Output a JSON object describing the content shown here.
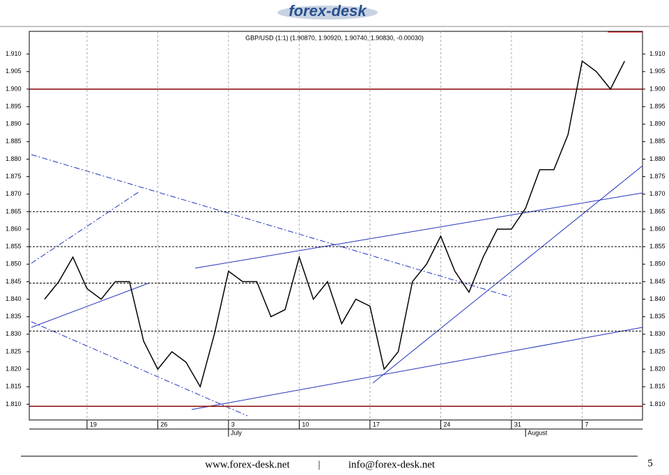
{
  "logo": "forex-desk",
  "chart_data": {
    "type": "line",
    "title": "GBP/USD (1:1) (1.90870, 1.90920, 1.90740, 1.90830, -0.00030)",
    "categories": [
      null,
      null,
      null,
      "19",
      null,
      null,
      null,
      null,
      "26",
      null,
      null,
      null,
      null,
      "3",
      null,
      null,
      null,
      null,
      "10",
      null,
      null,
      null,
      null,
      "17",
      null,
      null,
      null,
      null,
      "24",
      null,
      null,
      null,
      null,
      "31",
      null,
      null,
      null,
      null,
      "7",
      null,
      null,
      null
    ],
    "month_labels": [
      "July",
      "August"
    ],
    "series": [
      {
        "name": "GBP/USD",
        "color": "#000000",
        "values": [
          1.84,
          1.845,
          1.852,
          1.843,
          1.84,
          1.845,
          1.845,
          1.828,
          1.82,
          1.825,
          1.822,
          1.815,
          1.83,
          1.848,
          1.845,
          1.845,
          1.835,
          1.837,
          1.852,
          1.84,
          1.845,
          1.833,
          1.84,
          1.838,
          1.82,
          1.825,
          1.845,
          1.85,
          1.858,
          1.848,
          1.842,
          1.852,
          1.86,
          1.86,
          1.866,
          1.877,
          1.877,
          1.887,
          1.908,
          1.905,
          1.9,
          1.908
        ]
      }
    ],
    "levels": [
      {
        "value": 1.9,
        "color": "#8b0000",
        "style": "solid"
      },
      {
        "value": 1.8094,
        "color": "#8b0000",
        "style": "solid"
      },
      {
        "value": 1.865,
        "color": "#000000",
        "style": "dashed"
      },
      {
        "value": 1.855,
        "color": "#000000",
        "style": "dashed"
      },
      {
        "value": 1.8446,
        "color": "#000000",
        "style": "dashed"
      },
      {
        "value": 1.8309,
        "color": "#000000",
        "style": "dashed"
      }
    ],
    "ylim": [
      1.8055,
      1.9165
    ],
    "yticks": [
      {
        "value": 1.81,
        "label": "1.810"
      },
      {
        "value": 1.815,
        "label": "1.815"
      },
      {
        "value": 1.82,
        "label": "1.820"
      },
      {
        "value": 1.825,
        "label": "1.825"
      },
      {
        "value": 1.83,
        "label": "1.830"
      },
      {
        "value": 1.835,
        "label": "1.835"
      },
      {
        "value": 1.84,
        "label": "1.840"
      },
      {
        "value": 1.845,
        "label": "1.845"
      },
      {
        "value": 1.85,
        "label": "1.850"
      },
      {
        "value": 1.855,
        "label": "1.855"
      },
      {
        "value": 1.86,
        "label": "1.860"
      },
      {
        "value": 1.865,
        "label": "1.865"
      },
      {
        "value": 1.87,
        "label": "1.870"
      },
      {
        "value": 1.875,
        "label": "1.875"
      },
      {
        "value": 1.88,
        "label": "1.880"
      },
      {
        "value": 1.885,
        "label": "1.885"
      },
      {
        "value": 1.89,
        "label": "1.890"
      },
      {
        "value": 1.895,
        "label": "1.895"
      },
      {
        "value": 1.9,
        "label": "1.900"
      },
      {
        "value": 1.905,
        "label": "1.905"
      },
      {
        "value": 1.91,
        "label": "1.910"
      }
    ]
  },
  "footer": {
    "website": "www.forex-desk.net",
    "separator": "|",
    "email": "info@forex-desk.net",
    "page": "5"
  }
}
